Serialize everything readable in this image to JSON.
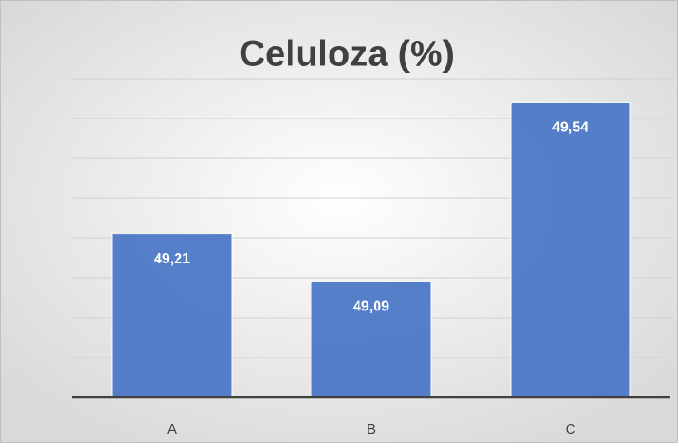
{
  "chart_data": {
    "type": "bar",
    "title": "Celuloza (%)",
    "categories": [
      "A",
      "B",
      "C"
    ],
    "values": [
      49.21,
      49.09,
      49.54
    ],
    "value_labels": [
      "49,21",
      "49,09",
      "49,54"
    ],
    "color": "#4472c4",
    "ylim": [
      48.8,
      49.6
    ],
    "yticks": [
      48.8,
      48.9,
      49.0,
      49.1,
      49.2,
      49.3,
      49.4,
      49.5,
      49.6
    ],
    "grid": true
  }
}
